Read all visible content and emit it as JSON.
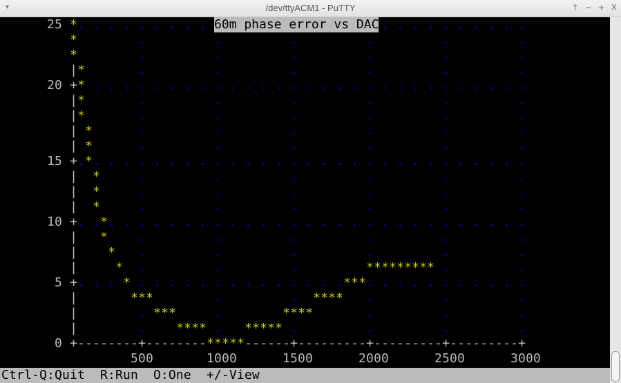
{
  "window": {
    "title": "/dev/ttyACM1 - PuTTY",
    "menu_icon": "▾",
    "controls": [
      "↑",
      "−",
      "+",
      "X"
    ]
  },
  "status_line": "Ctrl-Q:Quit  R:Run  O:One  +/-View",
  "colors": {
    "background": "#000000",
    "points": "#c8c800",
    "grid": "#0000c8",
    "axis": "#bbbbbb",
    "title_bg": "#bbbbbb"
  },
  "chart_data": {
    "type": "scatter",
    "title": "60m phase error vs DAC",
    "xlabel": "",
    "ylabel": "",
    "xlim": [
      50,
      3000
    ],
    "ylim": [
      0,
      25
    ],
    "grid": true,
    "marker": "*",
    "x_ticks": [
      500,
      1000,
      1500,
      2000,
      2500,
      3000
    ],
    "y_ticks": [
      0,
      5,
      10,
      15,
      20,
      25
    ],
    "points": [
      [
        50,
        25
      ],
      [
        50,
        23.8
      ],
      [
        50,
        22.6
      ],
      [
        100,
        21.4
      ],
      [
        100,
        20.2
      ],
      [
        100,
        19
      ],
      [
        100,
        17.9
      ],
      [
        150,
        16.7
      ],
      [
        150,
        15.5
      ],
      [
        150,
        14.3
      ],
      [
        200,
        13.1
      ],
      [
        200,
        11.9
      ],
      [
        200,
        10.7
      ],
      [
        250,
        9.5
      ],
      [
        250,
        8.3
      ],
      [
        300,
        7.1
      ],
      [
        350,
        6.0
      ],
      [
        400,
        4.8
      ],
      [
        450,
        3.6
      ],
      [
        500,
        3.6
      ],
      [
        550,
        3.6
      ],
      [
        600,
        2.4
      ],
      [
        650,
        2.4
      ],
      [
        700,
        2.4
      ],
      [
        750,
        1.2
      ],
      [
        800,
        1.2
      ],
      [
        850,
        1.2
      ],
      [
        900,
        1.2
      ],
      [
        950,
        0
      ],
      [
        1000,
        0
      ],
      [
        1050,
        0
      ],
      [
        1100,
        0
      ],
      [
        1150,
        0
      ],
      [
        1200,
        1.2
      ],
      [
        1250,
        1.2
      ],
      [
        1300,
        1.2
      ],
      [
        1350,
        1.2
      ],
      [
        1400,
        1.2
      ],
      [
        1450,
        2.4
      ],
      [
        1500,
        2.4
      ],
      [
        1550,
        2.4
      ],
      [
        1600,
        2.4
      ],
      [
        1650,
        3.6
      ],
      [
        1700,
        3.6
      ],
      [
        1750,
        3.6
      ],
      [
        1800,
        3.6
      ],
      [
        1850,
        4.8
      ],
      [
        1900,
        4.8
      ],
      [
        1950,
        4.8
      ],
      [
        2000,
        6.0
      ],
      [
        2050,
        6.0
      ],
      [
        2100,
        6.0
      ],
      [
        2150,
        6.0
      ],
      [
        2200,
        6.0
      ],
      [
        2250,
        6.0
      ],
      [
        2300,
        6.0
      ],
      [
        2350,
        6.0
      ],
      [
        2400,
        6.0
      ]
    ]
  }
}
